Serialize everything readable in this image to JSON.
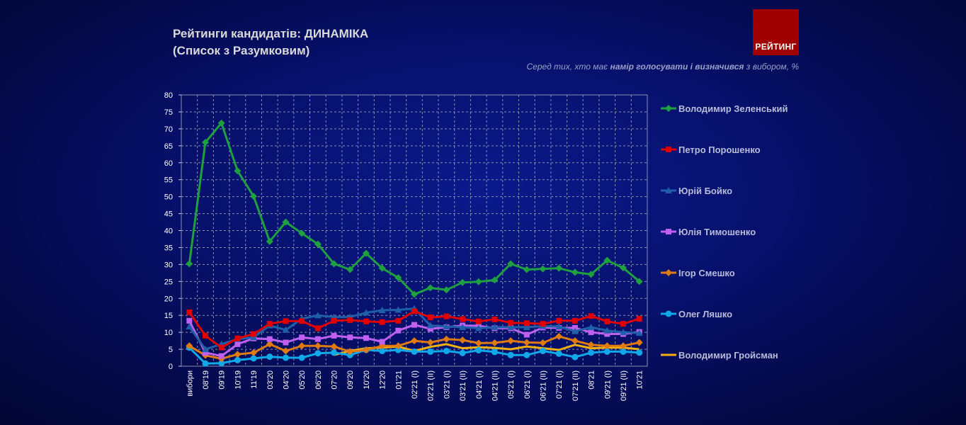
{
  "header": {
    "title_line1": "Рейтинги кандидатів: ДИНАМІКА",
    "title_line2": "(Список з Разумковим)",
    "logo_text": "РЕЙТИНГ",
    "note_prefix": "Серед тих, хто має ",
    "note_bold": "намір голосувати і визначився",
    "note_suffix": " з вибором, %"
  },
  "chart_data": {
    "type": "line",
    "ylim": [
      0,
      80
    ],
    "yticks": [
      0,
      5,
      10,
      15,
      20,
      25,
      30,
      35,
      40,
      45,
      50,
      55,
      60,
      65,
      70,
      75,
      80
    ],
    "grid": true,
    "legend_position": "right",
    "categories": [
      "вибори",
      "08'19",
      "09'19",
      "10'19",
      "11'19",
      "03'20",
      "04'20",
      "05'20",
      "06'20",
      "07'20",
      "09'20",
      "10'20",
      "12'20",
      "01'21",
      "02'21 (I)",
      "02'21 (II)",
      "03'21 (I)",
      "03'21 (II)",
      "04'21 (I)",
      "04'21 (II)",
      "05'21 (I)",
      "06'21 (I)",
      "06'21 (II)",
      "07'21 (I)",
      "07'21 (II)",
      "08'21",
      "09'21 (I)",
      "09'21 (II)",
      "10'21"
    ],
    "series": [
      {
        "name": "Володимир Зеленський",
        "color": "#1fa040",
        "marker": "diamond",
        "values": [
          30.2,
          66,
          71.7,
          57.6,
          50.1,
          36.8,
          42.5,
          39.2,
          36,
          30.2,
          28.5,
          33.3,
          28.9,
          26.1,
          21.2,
          23.1,
          22.5,
          24.7,
          24.9,
          25.4,
          30.2,
          28.5,
          28.7,
          28.9,
          27.7,
          27.1,
          31.2,
          29.0,
          25.0
        ]
      },
      {
        "name": "Петро Порошенко",
        "color": "#e00000",
        "marker": "square",
        "values": [
          15.9,
          9.0,
          5.5,
          8.2,
          9.5,
          12.5,
          13.3,
          13.3,
          11.2,
          13.4,
          13.6,
          13.2,
          13.0,
          13.4,
          16.2,
          14.4,
          14.7,
          13.9,
          13.2,
          13.8,
          12.8,
          12.7,
          12.5,
          13.4,
          13.4,
          14.8,
          13.2,
          12.5,
          14.0
        ]
      },
      {
        "name": "Юрій Бойко",
        "color": "#1f5faa",
        "marker": "triangle",
        "values": [
          11.7,
          5.0,
          6.5,
          8.0,
          8.5,
          12.0,
          10.7,
          14.0,
          15.0,
          14.5,
          14.5,
          15.8,
          16.5,
          16.6,
          17.0,
          12.0,
          11.7,
          11.5,
          11.2,
          11.5,
          11.5,
          11.5,
          11.8,
          11.7,
          10.3,
          11.5,
          10.5,
          10.0,
          9.8
        ]
      },
      {
        "name": "Юлія Тимошенко",
        "color": "#c060f0",
        "marker": "square",
        "values": [
          13.4,
          4.0,
          3.0,
          6.5,
          8.2,
          8.0,
          7.0,
          8.5,
          8.0,
          9.0,
          8.5,
          8.3,
          7.2,
          10.5,
          12.2,
          11.0,
          11.5,
          12.0,
          11.9,
          11.2,
          11.2,
          9.3,
          11.4,
          11.3,
          11.3,
          10.0,
          9.5,
          9.5,
          10.1
        ]
      },
      {
        "name": "Ігор Смешко",
        "color": "#e07a10",
        "marker": "diamond",
        "values": [
          6.0,
          3.2,
          2.2,
          3.5,
          4.0,
          6.5,
          4.5,
          6.0,
          6.0,
          5.8,
          4.3,
          4.8,
          6.0,
          6.0,
          7.5,
          7.0,
          8.0,
          7.7,
          6.8,
          6.9,
          7.5,
          7.0,
          6.9,
          8.8,
          7.5,
          6.3,
          6.0,
          6.0,
          7.0
        ]
      },
      {
        "name": "Олег Ляшко",
        "color": "#10a8e8",
        "marker": "circle",
        "values": [
          5.5,
          0.8,
          0.9,
          1.8,
          2.3,
          2.8,
          2.5,
          2.5,
          3.8,
          4.0,
          3.3,
          4.8,
          4.5,
          4.8,
          4.3,
          4.3,
          4.5,
          3.9,
          4.7,
          4.2,
          3.3,
          3.3,
          4.5,
          3.7,
          2.7,
          4.0,
          4.3,
          4.3,
          4.0
        ]
      },
      {
        "name": "Володимир Гройсман",
        "color": "#f0b010",
        "marker": "none",
        "values": [
          null,
          null,
          null,
          null,
          null,
          null,
          null,
          null,
          null,
          3.3,
          4.5,
          5.3,
          5.5,
          5.8,
          4.5,
          5.7,
          6.5,
          5.3,
          5.6,
          5.4,
          5.0,
          5.8,
          5.3,
          4.8,
          6.3,
          5.3,
          5.5,
          5.5,
          5.0
        ]
      }
    ]
  }
}
